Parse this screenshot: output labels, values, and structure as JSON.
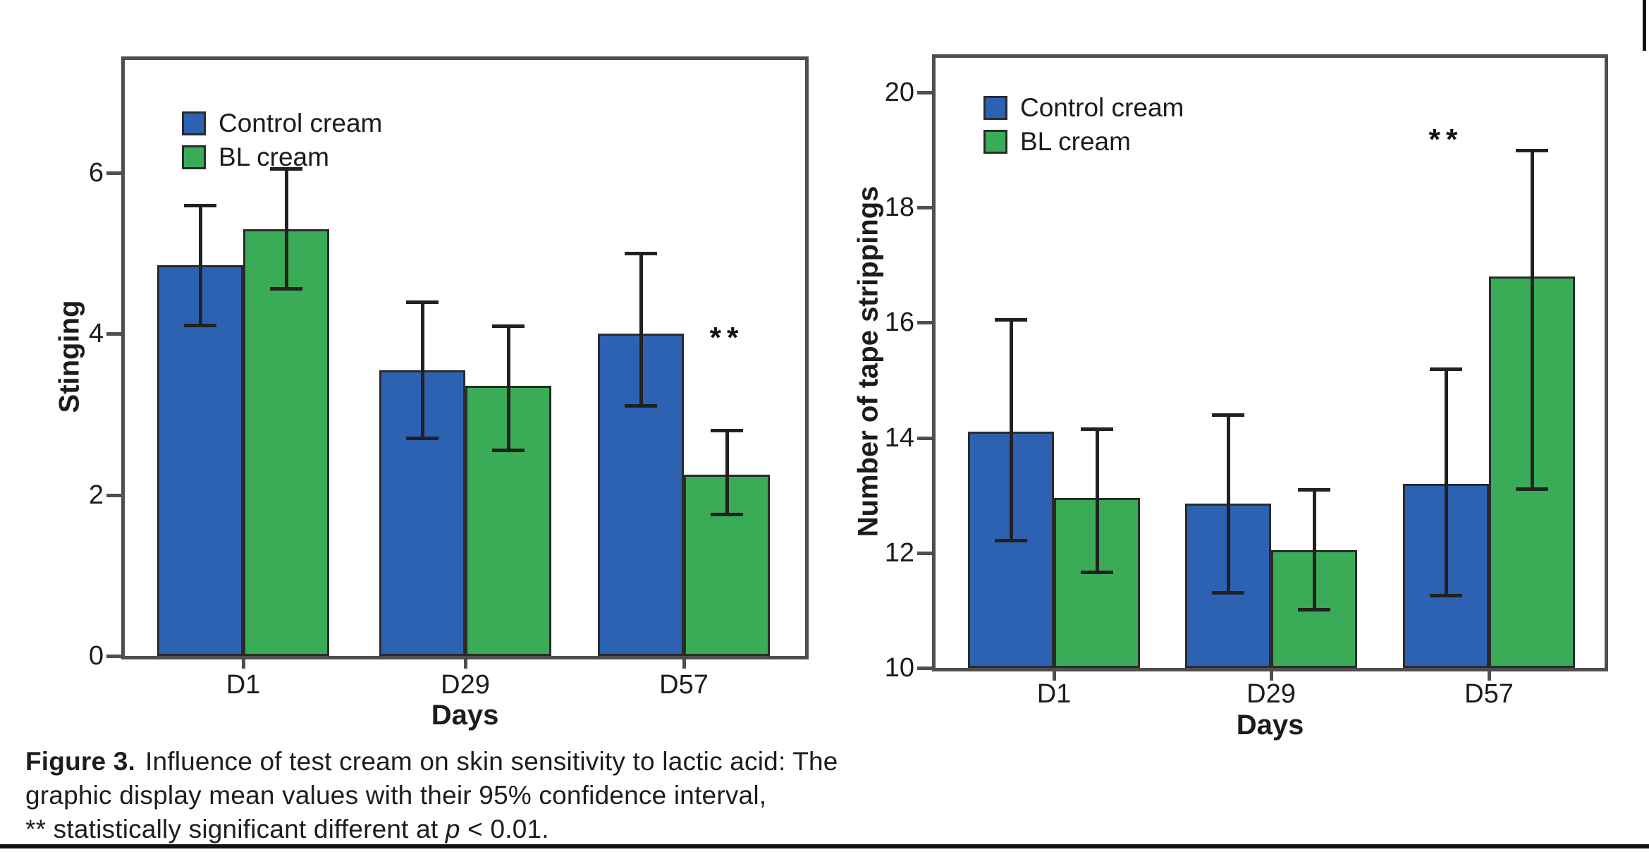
{
  "figure": {
    "caption": {
      "label": "Figure 3.",
      "line1": "Influence of test cream on skin sensitivity to lactic acid: The",
      "line2": "graphic display mean values with their 95% confidence interval,",
      "line3_prefix": "** statistically significant different at ",
      "line3_var": "p",
      "line3_suffix": " < 0.01."
    }
  },
  "colors": {
    "control_cream": "#2d62b2",
    "bl_cream": "#3aac58",
    "bar_outline": "#2b2b2b",
    "error_bar": "#212121",
    "axis": "#4f4f4f",
    "text": "#1c1c1c"
  },
  "chart_data": [
    {
      "type": "bar",
      "title": "",
      "ylabel": "Stinging",
      "xlabel": "Days",
      "categories": [
        "D1",
        "D29",
        "D57"
      ],
      "series": [
        {
          "name": "Control cream",
          "color": "#2d62b2",
          "values": [
            4.85,
            3.55,
            4.0
          ],
          "ci_low": [
            4.1,
            2.7,
            3.1
          ],
          "ci_high": [
            5.6,
            4.4,
            5.0
          ]
        },
        {
          "name": "BL cream",
          "color": "#3aac58",
          "values": [
            5.3,
            3.35,
            2.25
          ],
          "ci_low": [
            4.55,
            2.55,
            1.75
          ],
          "ci_high": [
            6.05,
            4.1,
            2.8
          ]
        }
      ],
      "yticks": [
        0,
        2,
        4,
        6
      ],
      "ylim": [
        0,
        7.4
      ],
      "grid": false,
      "legend_position": "top-left",
      "error_bars": "95% confidence interval",
      "annotations": [
        {
          "text": "**",
          "category": "D57",
          "series": "BL cream",
          "y": 3.9
        }
      ]
    },
    {
      "type": "bar",
      "title": "",
      "ylabel": "Number of tape strippings",
      "xlabel": "Days",
      "categories": [
        "D1",
        "D29",
        "D57"
      ],
      "series": [
        {
          "name": "Control cream",
          "color": "#2d62b2",
          "values": [
            14.1,
            12.85,
            13.2
          ],
          "ci_low": [
            12.2,
            11.3,
            11.25
          ],
          "ci_high": [
            16.05,
            14.4,
            15.2
          ]
        },
        {
          "name": "BL cream",
          "color": "#3aac58",
          "values": [
            12.95,
            12.05,
            16.8
          ],
          "ci_low": [
            11.65,
            11.0,
            13.1
          ],
          "ci_high": [
            14.15,
            13.1,
            19.0
          ]
        }
      ],
      "yticks": [
        10,
        12,
        14,
        16,
        18,
        20
      ],
      "ylim": [
        10,
        20.6
      ],
      "grid": false,
      "legend_position": "top-left",
      "error_bars": "95% confidence interval",
      "annotations": [
        {
          "text": "**",
          "category": "D57",
          "series": "Control cream",
          "y": 19.1
        }
      ]
    }
  ]
}
